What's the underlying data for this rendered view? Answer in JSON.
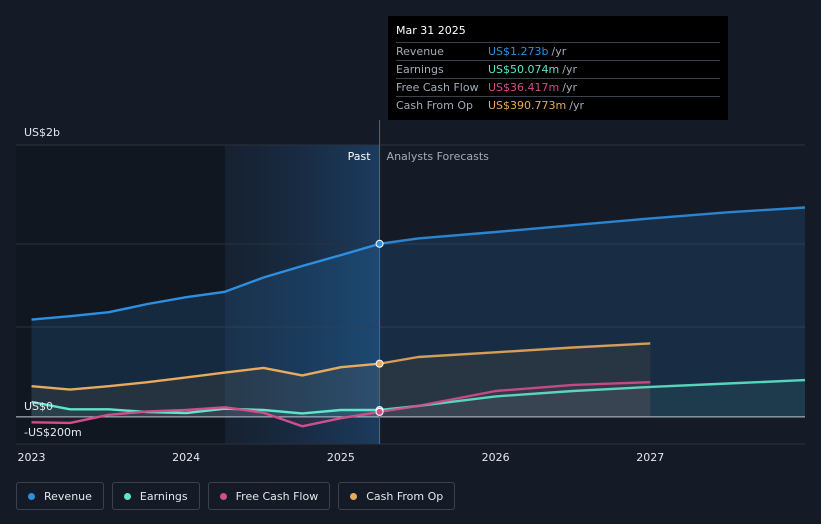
{
  "chart_data": {
    "type": "line",
    "title": "",
    "y_unit": "US$",
    "ylim": [
      -200,
      2000
    ],
    "y_tick_labels": [
      {
        "value": 2000,
        "label": "US$2b"
      },
      {
        "value": 0,
        "label": "US$0"
      },
      {
        "value": -200,
        "label": "-US$200m"
      }
    ],
    "xlim": [
      2022.9,
      2028.0
    ],
    "x_ticks": [
      {
        "value": 2023.0,
        "label": "2023"
      },
      {
        "value": 2024.0,
        "label": "2024"
      },
      {
        "value": 2025.0,
        "label": "2025"
      },
      {
        "value": 2026.0,
        "label": "2026"
      },
      {
        "value": 2027.0,
        "label": "2027"
      }
    ],
    "past_label": "Past",
    "forecast_label": "Analysts Forecasts",
    "past_start": 2024.25,
    "divider": 2025.25,
    "series": [
      {
        "name": "Revenue",
        "color": "#2e8fe0",
        "past": [
          [
            2023.0,
            715
          ],
          [
            2023.25,
            740
          ],
          [
            2023.5,
            770
          ],
          [
            2023.75,
            830
          ],
          [
            2024.0,
            880
          ],
          [
            2024.25,
            920
          ],
          [
            2024.5,
            1025
          ],
          [
            2024.75,
            1110
          ],
          [
            2025.0,
            1190
          ],
          [
            2025.25,
            1273
          ]
        ],
        "forecast": [
          [
            2025.25,
            1273
          ],
          [
            2025.5,
            1313
          ],
          [
            2026.0,
            1360
          ],
          [
            2026.5,
            1410
          ],
          [
            2027.0,
            1460
          ],
          [
            2027.5,
            1505
          ],
          [
            2028.0,
            1540
          ]
        ]
      },
      {
        "name": "Earnings",
        "color": "#5ee6c9",
        "past": [
          [
            2023.0,
            110
          ],
          [
            2023.25,
            55
          ],
          [
            2023.5,
            55
          ],
          [
            2023.75,
            35
          ],
          [
            2024.0,
            28
          ],
          [
            2024.25,
            60
          ],
          [
            2024.5,
            50
          ],
          [
            2024.75,
            25
          ],
          [
            2025.0,
            50
          ],
          [
            2025.25,
            50
          ]
        ],
        "forecast": [
          [
            2025.25,
            50
          ],
          [
            2025.5,
            80
          ],
          [
            2026.0,
            150
          ],
          [
            2026.5,
            190
          ],
          [
            2027.0,
            220
          ],
          [
            2027.5,
            245
          ],
          [
            2028.0,
            270
          ]
        ]
      },
      {
        "name": "Free Cash Flow",
        "color": "#d24e8a",
        "past": [
          [
            2023.0,
            -40
          ],
          [
            2023.25,
            -45
          ],
          [
            2023.5,
            15
          ],
          [
            2023.75,
            40
          ],
          [
            2024.0,
            50
          ],
          [
            2024.25,
            70
          ],
          [
            2024.5,
            30
          ],
          [
            2024.75,
            -70
          ],
          [
            2025.0,
            -10
          ],
          [
            2025.25,
            36
          ]
        ],
        "forecast": [
          [
            2025.25,
            36
          ],
          [
            2025.5,
            80
          ],
          [
            2026.0,
            190
          ],
          [
            2026.5,
            235
          ],
          [
            2027.0,
            255
          ]
        ]
      },
      {
        "name": "Cash From Op",
        "color": "#e8aa5c",
        "past": [
          [
            2023.0,
            225
          ],
          [
            2023.25,
            200
          ],
          [
            2023.5,
            225
          ],
          [
            2023.75,
            255
          ],
          [
            2024.0,
            290
          ],
          [
            2024.25,
            325
          ],
          [
            2024.5,
            360
          ],
          [
            2024.75,
            305
          ],
          [
            2025.0,
            365
          ],
          [
            2025.25,
            391
          ]
        ],
        "forecast": [
          [
            2025.25,
            391
          ],
          [
            2025.5,
            440
          ],
          [
            2026.0,
            475
          ],
          [
            2026.5,
            510
          ],
          [
            2027.0,
            540
          ]
        ]
      }
    ]
  },
  "tooltip": {
    "date": "Mar 31 2025",
    "rows": [
      {
        "label": "Revenue",
        "value": "US$1.273b",
        "unit": "/yr",
        "color": "#2e8fe0"
      },
      {
        "label": "Earnings",
        "value": "US$50.074m",
        "unit": "/yr",
        "color": "#5ee6c9"
      },
      {
        "label": "Free Cash Flow",
        "value": "US$36.417m",
        "unit": "/yr",
        "color": "#d24e8a"
      },
      {
        "label": "Cash From Op",
        "value": "US$390.773m",
        "unit": "/yr",
        "color": "#e8aa5c"
      }
    ]
  },
  "legend": [
    {
      "label": "Revenue",
      "color": "#2e8fe0"
    },
    {
      "label": "Earnings",
      "color": "#5ee6c9"
    },
    {
      "label": "Free Cash Flow",
      "color": "#d24e8a"
    },
    {
      "label": "Cash From Op",
      "color": "#e8aa5c"
    }
  ]
}
